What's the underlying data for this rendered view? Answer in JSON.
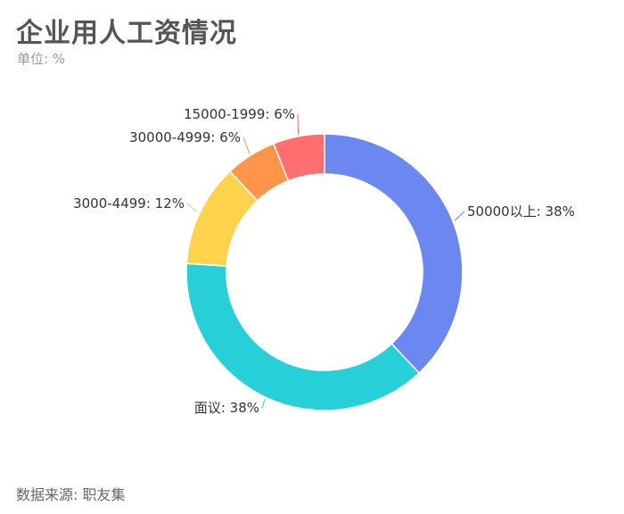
{
  "title": "企业用人工资情况",
  "subtitle": "单位: %",
  "source": "数据来源: 职友集",
  "chart_data": {
    "type": "pie",
    "variant": "donut",
    "title": "企业用人工资情况",
    "subtitle": "单位: %",
    "unit": "%",
    "start": "top",
    "direction": "clockwise",
    "slices": [
      {
        "label": "50000以上",
        "value": 38,
        "color": "#6b88f0"
      },
      {
        "label": "面议",
        "value": 38,
        "color": "#27cfd9"
      },
      {
        "label": "3000-4499",
        "value": 12,
        "color": "#fdd24c"
      },
      {
        "label": "30000-4999",
        "value": 6,
        "color": "#ff954b"
      },
      {
        "label": "15000-1999",
        "value": 6,
        "color": "#ff6f70"
      }
    ]
  }
}
